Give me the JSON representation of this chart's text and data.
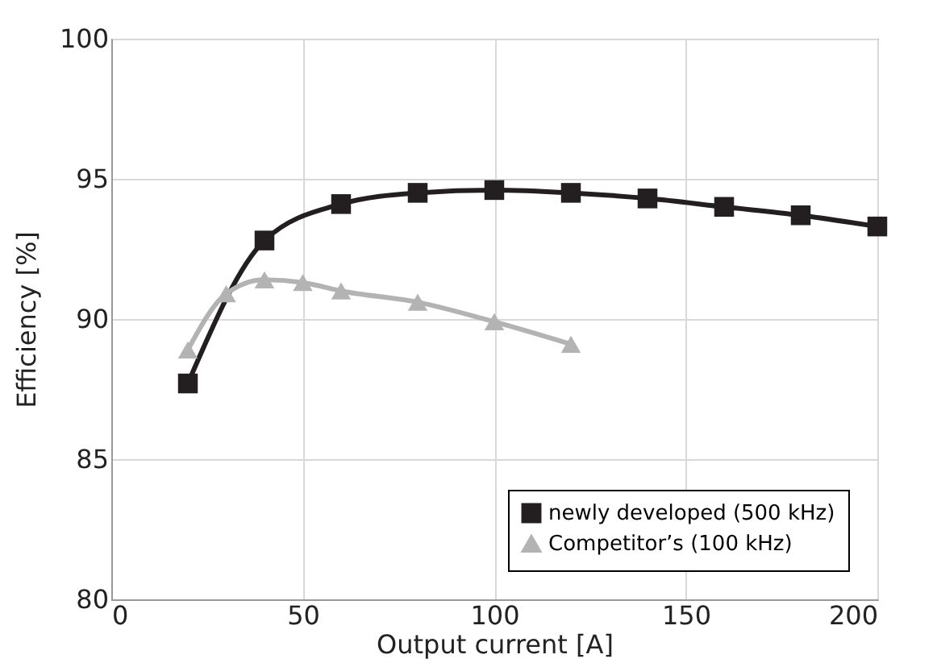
{
  "chart_data": {
    "type": "line",
    "xlabel": "Output current [A]",
    "ylabel": "Efficiency [%]",
    "xlim": [
      0,
      200
    ],
    "xticks": [
      0,
      50,
      100,
      150,
      200
    ],
    "ylim": [
      80,
      100
    ],
    "yticks": [
      80,
      85,
      90,
      95,
      100
    ],
    "grid": true,
    "legend": "bottom right",
    "series": [
      {
        "name": "newly developed (500 kHz)",
        "color": "#231f20",
        "marker": "square",
        "x": [
          20,
          40,
          60,
          80,
          100,
          120,
          140,
          160,
          180,
          200
        ],
        "values": [
          87.7,
          92.8,
          94.1,
          94.5,
          94.6,
          94.5,
          94.3,
          94.0,
          93.7,
          93.3
        ]
      },
      {
        "name": "Competitor’s (100 kHz)",
        "color": "#b3b3b3",
        "marker": "triangle",
        "x": [
          20,
          30,
          40,
          50,
          60,
          80,
          100,
          120
        ],
        "values": [
          88.9,
          90.9,
          91.4,
          91.3,
          91.0,
          90.6,
          89.9,
          89.1
        ]
      }
    ]
  }
}
